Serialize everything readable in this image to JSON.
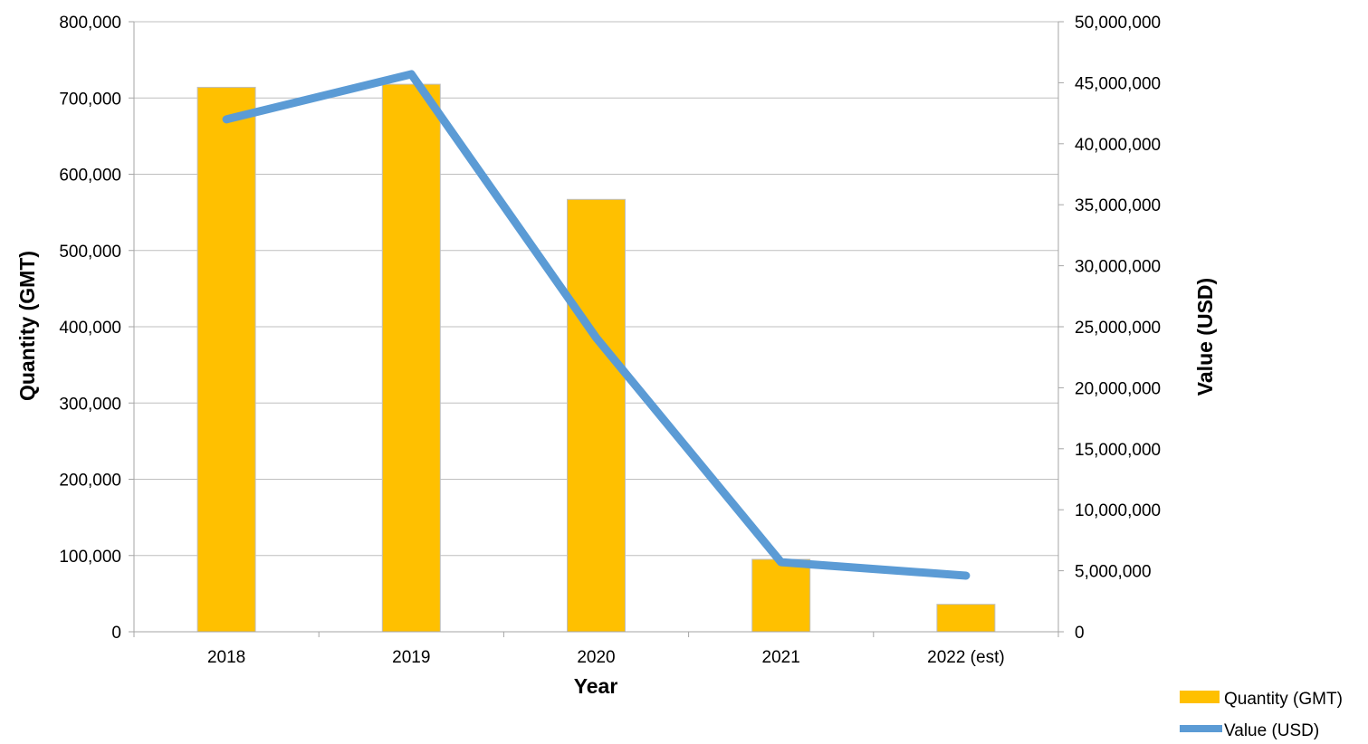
{
  "colors": {
    "bar": "#FFC000",
    "bar_border": "#BFBFBF",
    "line": "#5B9BD5",
    "grid": "#BFBFBF",
    "axis": "#A6A6A6"
  },
  "chart_data": {
    "type": "bar",
    "categories": [
      "2018",
      "2019",
      "2020",
      "2021",
      "2022 (est)"
    ],
    "series": [
      {
        "name": "Quantity (GMT)",
        "type": "bar",
        "axis": "left",
        "values": [
          714000,
          718000,
          567000,
          95000,
          36000
        ]
      },
      {
        "name": "Value (USD)",
        "type": "line",
        "axis": "right",
        "values": [
          42000000,
          45700000,
          24100000,
          5700000,
          4600000
        ]
      }
    ],
    "xlabel": "Year",
    "ylabel": "Quantity (GMT)",
    "y2label": "Value (USD)",
    "ylim": [
      0,
      800000
    ],
    "y2lim": [
      0,
      50000000
    ],
    "yticks": [
      "0",
      "100,000",
      "200,000",
      "300,000",
      "400,000",
      "500,000",
      "600,000",
      "700,000",
      "800,000"
    ],
    "y2ticks": [
      "0",
      "5,000,000",
      "10,000,000",
      "15,000,000",
      "20,000,000",
      "25,000,000",
      "30,000,000",
      "35,000,000",
      "40,000,000",
      "45,000,000",
      "50,000,000"
    ],
    "grid": true,
    "legend_position": "bottom-right"
  }
}
